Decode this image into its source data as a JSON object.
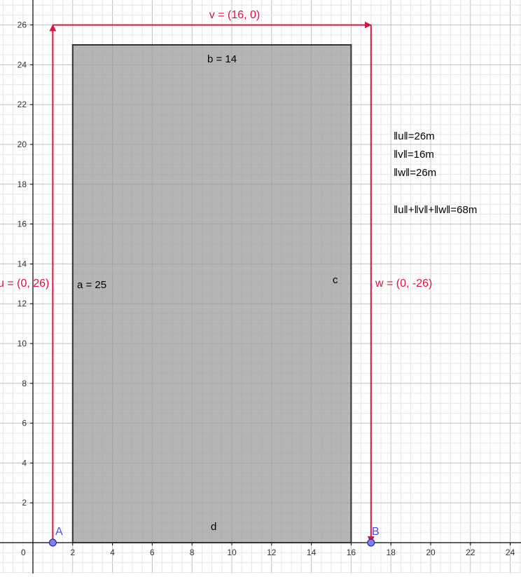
{
  "colors": {
    "vector": "#dc143c",
    "rect_fill": "#999999",
    "rect_stroke": "#333333",
    "point_fill": "#7f7fef",
    "point_stroke": "#1a1a8a",
    "point_label": "#4d4de0",
    "grid_minor": "#e6e6e6",
    "grid_major": "#c0c0c0",
    "axis": "#000000"
  },
  "axes": {
    "x_ticks": [
      "2",
      "4",
      "6",
      "8",
      "10",
      "12",
      "14",
      "16",
      "18",
      "20",
      "22",
      "24"
    ],
    "y_ticks": [
      "2",
      "4",
      "6",
      "8",
      "10",
      "12",
      "14",
      "16",
      "18",
      "20",
      "22",
      "24",
      "26"
    ],
    "origin_label": "0"
  },
  "points": {
    "A": {
      "label": "A",
      "x": 1,
      "y": 0
    },
    "B": {
      "label": "B",
      "x": 17,
      "y": 0
    }
  },
  "rectangle": {
    "corners": [
      [
        2,
        0
      ],
      [
        16,
        0
      ],
      [
        16,
        25
      ],
      [
        2,
        25
      ]
    ],
    "labels": {
      "a": "a = 25",
      "b": "b = 14",
      "c": "c",
      "d": "d"
    }
  },
  "vectors": {
    "u": {
      "label": "u = (0, 26)",
      "from": [
        1,
        0
      ],
      "to": [
        1,
        26
      ]
    },
    "v": {
      "label": "v = (16, 0)",
      "from": [
        1,
        26
      ],
      "to": [
        17,
        26
      ]
    },
    "w": {
      "label": "w = (0, -26)",
      "from": [
        17,
        26
      ],
      "to": [
        17,
        0
      ]
    }
  },
  "info": {
    "norm_u": "‖u‖=26m",
    "norm_v": "‖v‖=16m",
    "norm_w": "‖w‖=26m",
    "norm_sum": "‖u‖+‖v‖+‖w‖=68m"
  }
}
